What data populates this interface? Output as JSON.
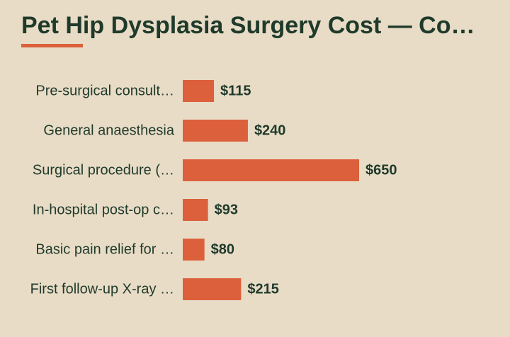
{
  "colors": {
    "background": "#e8dcc6",
    "bar": "#dc603c",
    "text": "#1f3a2b",
    "accent": "#dc603c"
  },
  "chart_data": {
    "type": "bar",
    "orientation": "horizontal",
    "title": "Pet Hip Dysplasia Surgery Cost — Co…",
    "categories": [
      "Pre-surgical consult…",
      "General anaesthesia",
      "Surgical procedure (…",
      "In-hospital post-op c…",
      "Basic pain relief for …",
      "First follow-up X-ray …"
    ],
    "values": [
      115,
      240,
      650,
      93,
      80,
      215
    ],
    "value_labels": [
      "$115",
      "$240",
      "$650",
      "$93",
      "$80",
      "$215"
    ],
    "xlim": [
      0,
      650
    ],
    "grid": false,
    "legend": "none"
  }
}
